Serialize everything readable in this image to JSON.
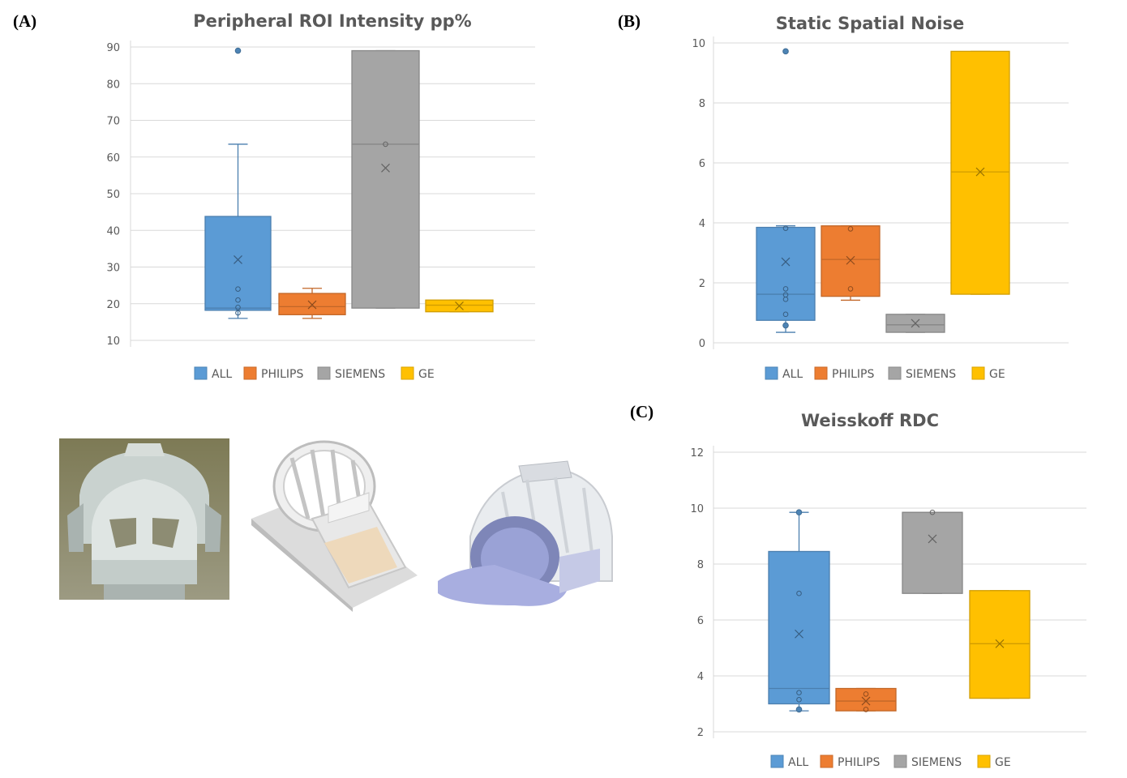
{
  "panels": {
    "a": "(A)",
    "b": "(B)",
    "c": "(C)"
  },
  "colors": {
    "ALL": "#5B9BD5",
    "PHILIPS": "#ED7D31",
    "SIEMENS": "#A5A5A5",
    "GE": "#FFC000"
  },
  "photos": [
    {
      "name": "siemens-head-coil-photo",
      "icon": "head-coil-icon"
    },
    {
      "name": "birdcage-coil-render",
      "icon": "birdcage-coil-icon"
    },
    {
      "name": "philips-head-coil-render",
      "icon": "head-coil-render-icon"
    }
  ],
  "chart_data": [
    {
      "type": "box",
      "title": "Peripheral ROI Intensity pp%",
      "xlabel": "",
      "ylabel": "",
      "ylim": [
        10,
        90
      ],
      "yticks": [
        10,
        20,
        30,
        40,
        50,
        60,
        70,
        80,
        90
      ],
      "grid": true,
      "legend": "bottom",
      "categories": [
        "ALL",
        "PHILIPS",
        "SIEMENS",
        "GE"
      ],
      "series": [
        {
          "name": "ALL",
          "min": 16,
          "q1": 18.2,
          "median": 18.8,
          "q3": 43.8,
          "max": 63.5,
          "mean": 32,
          "points": [
            17.5,
            19,
            21,
            24
          ],
          "outliers": [
            89
          ]
        },
        {
          "name": "PHILIPS",
          "min": 16,
          "q1": 17,
          "median": 19.2,
          "q3": 22.8,
          "max": 24.2,
          "mean": 19.7,
          "points": [],
          "outliers": []
        },
        {
          "name": "SIEMENS",
          "min": 18.8,
          "q1": 18.8,
          "median": 63.5,
          "q3": 89,
          "max": 89,
          "mean": 57,
          "points": [
            63.5
          ],
          "outliers": []
        },
        {
          "name": "GE",
          "min": 17.8,
          "q1": 17.8,
          "median": 19.6,
          "q3": 21,
          "max": 21,
          "mean": 19.4,
          "points": [],
          "outliers": []
        }
      ]
    },
    {
      "type": "box",
      "title": "Static Spatial Noise",
      "xlabel": "",
      "ylabel": "",
      "ylim": [
        0,
        10
      ],
      "yticks": [
        0,
        2,
        4,
        6,
        8,
        10
      ],
      "grid": true,
      "legend": "bottom",
      "categories": [
        "ALL",
        "PHILIPS",
        "SIEMENS",
        "GE"
      ],
      "series": [
        {
          "name": "ALL",
          "min": 0.35,
          "q1": 0.75,
          "median": 1.62,
          "q3": 3.85,
          "max": 3.9,
          "mean": 2.7,
          "points": [
            0.95,
            1.45,
            1.6,
            1.8,
            3.82
          ],
          "outliers": [
            0.58,
            9.72
          ]
        },
        {
          "name": "PHILIPS",
          "min": 1.42,
          "q1": 1.55,
          "median": 2.78,
          "q3": 3.9,
          "max": 3.9,
          "mean": 2.75,
          "points": [
            1.8,
            3.8
          ],
          "outliers": []
        },
        {
          "name": "SIEMENS",
          "min": 0.35,
          "q1": 0.35,
          "median": 0.6,
          "q3": 0.95,
          "max": 0.95,
          "mean": 0.65,
          "points": [],
          "outliers": []
        },
        {
          "name": "GE",
          "min": 1.62,
          "q1": 1.62,
          "median": 5.7,
          "q3": 9.72,
          "max": 9.72,
          "mean": 5.7,
          "points": [],
          "outliers": []
        }
      ]
    },
    {
      "type": "box",
      "title": "Weisskoff RDC",
      "xlabel": "",
      "ylabel": "",
      "ylim": [
        2,
        12
      ],
      "yticks": [
        2,
        4,
        6,
        8,
        10,
        12
      ],
      "grid": true,
      "legend": "bottom",
      "categories": [
        "ALL",
        "PHILIPS",
        "SIEMENS",
        "GE"
      ],
      "series": [
        {
          "name": "ALL",
          "min": 2.75,
          "q1": 3.0,
          "median": 3.55,
          "q3": 8.45,
          "max": 9.85,
          "mean": 5.5,
          "points": [
            3.15,
            3.4,
            6.95
          ],
          "outliers": [
            2.8,
            9.85
          ]
        },
        {
          "name": "PHILIPS",
          "min": 2.75,
          "q1": 2.75,
          "median": 3.1,
          "q3": 3.55,
          "max": 3.55,
          "mean": 3.1,
          "points": [
            2.8,
            3.35
          ],
          "outliers": []
        },
        {
          "name": "SIEMENS",
          "min": 6.95,
          "q1": 6.95,
          "median": 9.85,
          "q3": 9.85,
          "max": 9.85,
          "mean": 8.9,
          "points": [
            9.85
          ],
          "outliers": []
        },
        {
          "name": "GE",
          "min": 3.2,
          "q1": 3.2,
          "median": 5.15,
          "q3": 7.05,
          "max": 7.05,
          "mean": 5.15,
          "points": [],
          "outliers": []
        }
      ]
    }
  ]
}
